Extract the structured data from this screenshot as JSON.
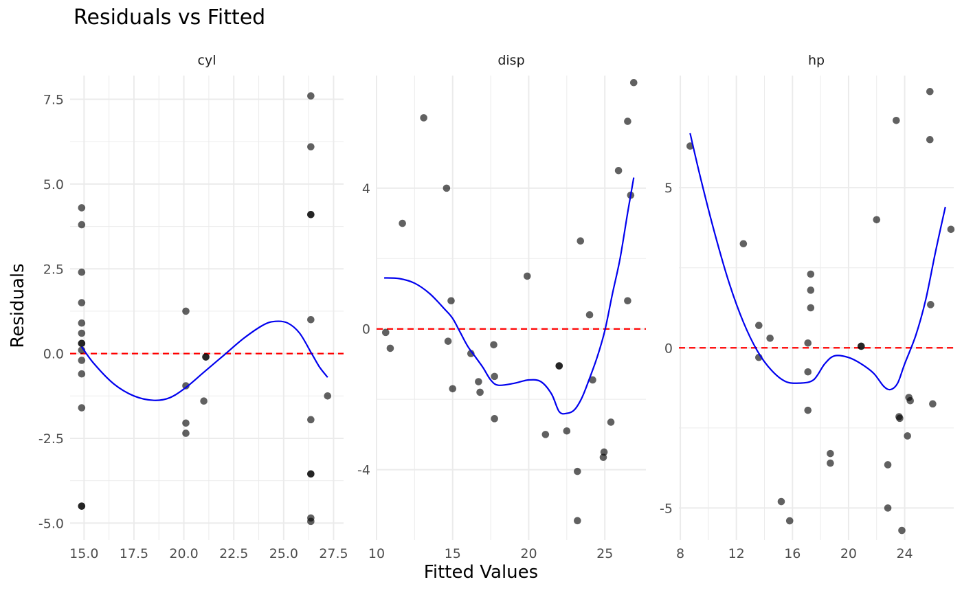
{
  "title": "Residuals vs Fitted",
  "xlabel": "Fitted Values",
  "ylabel": "Residuals",
  "colors": {
    "points": "#000000",
    "smooth": "#0000ee",
    "zero_line": "#ff0000",
    "grid": "#ebebeb",
    "text": "#4d4d4d"
  },
  "chart_data": [
    {
      "type": "scatter",
      "panel": "cyl",
      "xlim": [
        14.3,
        28.0
      ],
      "ylim": [
        -5.5,
        8.2
      ],
      "xticks": [
        15.0,
        17.5,
        20.0,
        22.5,
        25.0,
        27.5
      ],
      "xtick_labels": [
        "15.0",
        "17.5",
        "20.0",
        "22.5",
        "25.0",
        "27.5"
      ],
      "yticks": [
        -5.0,
        -2.5,
        0.0,
        2.5,
        5.0,
        7.5
      ],
      "ytick_labels": [
        "-5.0",
        "-2.5",
        "0.0",
        "2.5",
        "5.0",
        "7.5"
      ],
      "grid": true,
      "reference_line_y": 0,
      "points": [
        [
          14.88,
          4.3
        ],
        [
          14.88,
          3.8
        ],
        [
          14.88,
          2.4
        ],
        [
          14.88,
          1.5
        ],
        [
          14.88,
          0.9
        ],
        [
          14.88,
          0.6
        ],
        [
          14.88,
          0.3
        ],
        [
          14.88,
          0.3
        ],
        [
          14.88,
          0.1
        ],
        [
          14.88,
          -0.2
        ],
        [
          14.88,
          -0.6
        ],
        [
          14.88,
          -1.6
        ],
        [
          14.88,
          -4.5
        ],
        [
          14.88,
          -4.5
        ],
        [
          20.1,
          1.25
        ],
        [
          20.1,
          -0.95
        ],
        [
          20.1,
          -2.05
        ],
        [
          20.1,
          -2.35
        ],
        [
          21.1,
          -0.1
        ],
        [
          21.1,
          -0.1
        ],
        [
          21.0,
          -1.4
        ],
        [
          26.36,
          7.6
        ],
        [
          26.36,
          6.1
        ],
        [
          26.36,
          4.1
        ],
        [
          26.36,
          4.1
        ],
        [
          26.36,
          1.0
        ],
        [
          26.36,
          -1.95
        ],
        [
          26.36,
          -3.55
        ],
        [
          26.36,
          -3.55
        ],
        [
          26.36,
          -4.85
        ],
        [
          26.36,
          -4.95
        ],
        [
          27.2,
          -1.25
        ]
      ],
      "smooth": [
        [
          14.88,
          0.2
        ],
        [
          15.5,
          -0.3
        ],
        [
          16.5,
          -0.9
        ],
        [
          17.5,
          -1.25
        ],
        [
          18.5,
          -1.38
        ],
        [
          19.3,
          -1.3
        ],
        [
          20.1,
          -1.0
        ],
        [
          21.0,
          -0.55
        ],
        [
          22.0,
          -0.05
        ],
        [
          23.0,
          0.45
        ],
        [
          24.0,
          0.85
        ],
        [
          24.6,
          0.95
        ],
        [
          25.2,
          0.9
        ],
        [
          25.8,
          0.6
        ],
        [
          26.4,
          0.0
        ],
        [
          26.8,
          -0.4
        ],
        [
          27.2,
          -0.7
        ]
      ]
    },
    {
      "type": "scatter",
      "panel": "disp",
      "xlim": [
        10.0,
        27.7
      ],
      "ylim": [
        -6.0,
        7.2
      ],
      "xticks": [
        10,
        15,
        20,
        25
      ],
      "xtick_labels": [
        "10",
        "15",
        "20",
        "25"
      ],
      "yticks": [
        -4,
        0,
        4
      ],
      "ytick_labels": [
        "-4",
        "0",
        "4"
      ],
      "grid": true,
      "reference_line_y": 0,
      "points": [
        [
          10.6,
          -0.1
        ],
        [
          10.9,
          -0.55
        ],
        [
          11.7,
          3.0
        ],
        [
          13.1,
          6.0
        ],
        [
          14.6,
          4.0
        ],
        [
          14.7,
          -0.35
        ],
        [
          14.9,
          0.8
        ],
        [
          15.0,
          -1.7
        ],
        [
          16.2,
          -0.7
        ],
        [
          16.7,
          -1.5
        ],
        [
          16.8,
          -1.8
        ],
        [
          17.7,
          -0.45
        ],
        [
          17.75,
          -1.35
        ],
        [
          17.75,
          -2.55
        ],
        [
          19.9,
          1.5
        ],
        [
          21.1,
          -3.0
        ],
        [
          22.0,
          -1.05
        ],
        [
          22.0,
          -1.05
        ],
        [
          22.5,
          -2.9
        ],
        [
          23.2,
          -4.05
        ],
        [
          23.2,
          -5.45
        ],
        [
          23.4,
          2.5
        ],
        [
          24.0,
          0.4
        ],
        [
          24.2,
          -1.45
        ],
        [
          24.9,
          -3.65
        ],
        [
          24.95,
          -3.5
        ],
        [
          25.4,
          -2.65
        ],
        [
          25.9,
          4.5
        ],
        [
          26.5,
          0.8
        ],
        [
          26.5,
          5.9
        ],
        [
          26.7,
          3.8
        ],
        [
          26.9,
          7.0
        ]
      ],
      "smooth": [
        [
          10.5,
          1.45
        ],
        [
          11.5,
          1.43
        ],
        [
          12.5,
          1.3
        ],
        [
          13.5,
          1.0
        ],
        [
          14.5,
          0.55
        ],
        [
          15.0,
          0.3
        ],
        [
          15.5,
          -0.1
        ],
        [
          16.0,
          -0.5
        ],
        [
          16.5,
          -0.8
        ],
        [
          17.0,
          -1.1
        ],
        [
          17.5,
          -1.45
        ],
        [
          18.0,
          -1.6
        ],
        [
          19.0,
          -1.55
        ],
        [
          20.0,
          -1.45
        ],
        [
          20.8,
          -1.5
        ],
        [
          21.5,
          -1.85
        ],
        [
          22.0,
          -2.35
        ],
        [
          22.5,
          -2.4
        ],
        [
          23.0,
          -2.3
        ],
        [
          23.5,
          -1.95
        ],
        [
          24.0,
          -1.4
        ],
        [
          24.5,
          -0.8
        ],
        [
          25.0,
          -0.05
        ],
        [
          25.5,
          1.0
        ],
        [
          26.0,
          2.0
        ],
        [
          26.5,
          3.3
        ],
        [
          26.9,
          4.3
        ]
      ]
    },
    {
      "type": "scatter",
      "panel": "hp",
      "xlim": [
        7.9,
        27.5
      ],
      "ylim": [
        -6.0,
        8.5
      ],
      "xticks": [
        8,
        12,
        16,
        20,
        24
      ],
      "xtick_labels": [
        "8",
        "12",
        "16",
        "20",
        "24"
      ],
      "yticks": [
        -5,
        0,
        5
      ],
      "ytick_labels": [
        "-5",
        "0",
        "5"
      ],
      "grid": true,
      "reference_line_y": 0,
      "points": [
        [
          8.7,
          6.3
        ],
        [
          12.5,
          3.25
        ],
        [
          13.6,
          0.7
        ],
        [
          13.6,
          -0.3
        ],
        [
          14.4,
          0.3
        ],
        [
          15.2,
          -4.8
        ],
        [
          15.8,
          -5.4
        ],
        [
          17.1,
          0.15
        ],
        [
          17.1,
          -0.75
        ],
        [
          17.1,
          -1.95
        ],
        [
          17.3,
          2.3
        ],
        [
          17.3,
          1.8
        ],
        [
          17.3,
          1.25
        ],
        [
          18.7,
          -3.3
        ],
        [
          18.7,
          -3.6
        ],
        [
          20.9,
          0.05
        ],
        [
          20.9,
          0.05
        ],
        [
          22.0,
          4.0
        ],
        [
          22.8,
          -3.65
        ],
        [
          22.8,
          -5.0
        ],
        [
          23.4,
          7.1
        ],
        [
          23.6,
          -2.15
        ],
        [
          23.65,
          -2.2
        ],
        [
          23.8,
          -5.7
        ],
        [
          24.2,
          -2.75
        ],
        [
          24.3,
          -1.55
        ],
        [
          24.4,
          -1.65
        ],
        [
          25.8,
          8.0
        ],
        [
          25.8,
          6.5
        ],
        [
          25.85,
          1.35
        ],
        [
          26.0,
          -1.75
        ],
        [
          27.3,
          3.7
        ]
      ],
      "smooth": [
        [
          8.7,
          6.7
        ],
        [
          9.5,
          5.2
        ],
        [
          10.5,
          3.5
        ],
        [
          11.5,
          2.0
        ],
        [
          12.5,
          0.8
        ],
        [
          13.5,
          -0.1
        ],
        [
          14.5,
          -0.7
        ],
        [
          15.5,
          -1.05
        ],
        [
          16.5,
          -1.1
        ],
        [
          17.5,
          -1.0
        ],
        [
          18.3,
          -0.5
        ],
        [
          19.0,
          -0.25
        ],
        [
          20.0,
          -0.3
        ],
        [
          20.9,
          -0.5
        ],
        [
          21.8,
          -0.8
        ],
        [
          22.5,
          -1.2
        ],
        [
          23.0,
          -1.3
        ],
        [
          23.5,
          -1.1
        ],
        [
          24.0,
          -0.5
        ],
        [
          24.8,
          0.4
        ],
        [
          25.5,
          1.5
        ],
        [
          26.2,
          3.0
        ],
        [
          26.9,
          4.4
        ]
      ]
    }
  ],
  "panels": [
    {
      "strip": "cyl"
    },
    {
      "strip": "disp"
    },
    {
      "strip": "hp"
    }
  ]
}
